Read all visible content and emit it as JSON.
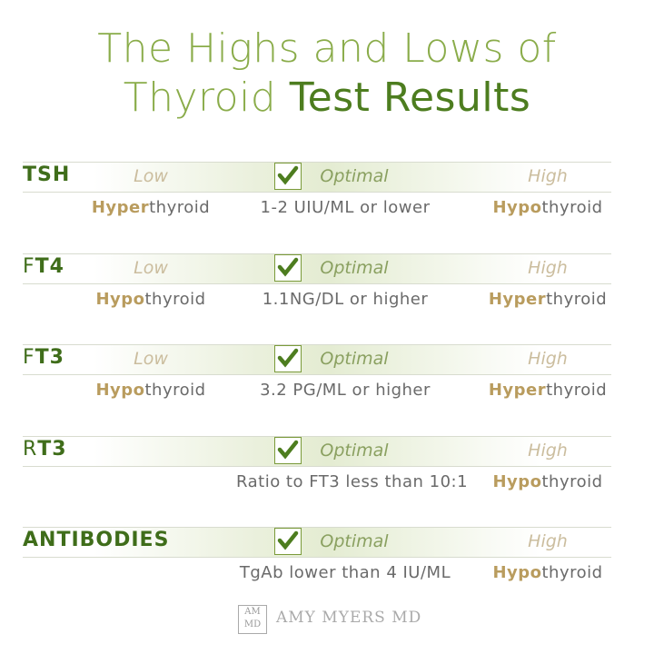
{
  "title": {
    "line1": "The Highs and Lows of",
    "line2_regular": "Thyroid",
    "line2_bold": "Test Results"
  },
  "rows": [
    {
      "name_bold": "TSH",
      "low": "Low",
      "optimal": "Optimal",
      "high": "High",
      "low_note": {
        "bold": "Hyper",
        "rest": "thyroid"
      },
      "optimal_note": "1-2 UIU/ML or lower",
      "high_note": {
        "bold": "Hypo",
        "rest": "thyroid"
      }
    },
    {
      "name_plain": "F",
      "name_bold": "T4",
      "low": "Low",
      "optimal": "Optimal",
      "high": "High",
      "low_note": {
        "bold": "Hypo",
        "rest": "thyroid"
      },
      "optimal_note": "1.1NG/DL or higher",
      "high_note": {
        "bold": "Hyper",
        "rest": "thyroid"
      }
    },
    {
      "name_plain": "F",
      "name_bold": "T3",
      "low": "Low",
      "optimal": "Optimal",
      "high": "High",
      "low_note": {
        "bold": "Hypo",
        "rest": "thyroid"
      },
      "optimal_note": "3.2 PG/ML or higher",
      "high_note": {
        "bold": "Hyper",
        "rest": "thyroid"
      }
    },
    {
      "name_plain": "R",
      "name_bold": "T3",
      "optimal": "Optimal",
      "high": "High",
      "optimal_note": "Ratio to FT3 less than 10:1",
      "high_note": {
        "bold": "Hypo",
        "rest": "thyroid"
      }
    },
    {
      "name_bold": "ANTIBODIES",
      "optimal": "Optimal",
      "high": "High",
      "optimal_note": "TgAb lower than 4 IU/ML",
      "high_note": {
        "bold": "Hypo",
        "rest": "thyroid"
      }
    }
  ],
  "footer": {
    "logo_top": "AM",
    "logo_bottom": "MD",
    "brand": "AMY MYERS MD"
  }
}
